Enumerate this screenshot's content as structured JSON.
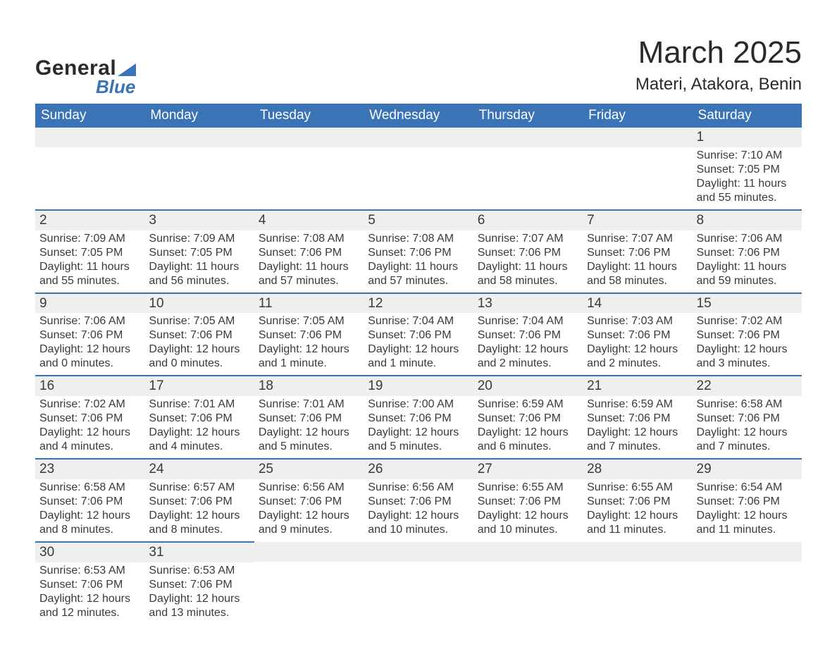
{
  "logo": {
    "line1": "General",
    "line2": "Blue",
    "triangle_color": "#3a74b7"
  },
  "title": "March 2025",
  "location": "Materi, Atakora, Benin",
  "colors": {
    "header_bg": "#3a74b7",
    "header_text": "#ffffff",
    "row_border": "#3a74b7",
    "daynum_bg": "#efefef",
    "text": "#3a3a3a",
    "background": "#ffffff"
  },
  "day_labels": [
    "Sunday",
    "Monday",
    "Tuesday",
    "Wednesday",
    "Thursday",
    "Friday",
    "Saturday"
  ],
  "weeks": [
    [
      null,
      null,
      null,
      null,
      null,
      null,
      {
        "n": "1",
        "sunrise": "Sunrise: 7:10 AM",
        "sunset": "Sunset: 7:05 PM",
        "day1": "Daylight: 11 hours",
        "day2": "and 55 minutes."
      }
    ],
    [
      {
        "n": "2",
        "sunrise": "Sunrise: 7:09 AM",
        "sunset": "Sunset: 7:05 PM",
        "day1": "Daylight: 11 hours",
        "day2": "and 55 minutes."
      },
      {
        "n": "3",
        "sunrise": "Sunrise: 7:09 AM",
        "sunset": "Sunset: 7:05 PM",
        "day1": "Daylight: 11 hours",
        "day2": "and 56 minutes."
      },
      {
        "n": "4",
        "sunrise": "Sunrise: 7:08 AM",
        "sunset": "Sunset: 7:06 PM",
        "day1": "Daylight: 11 hours",
        "day2": "and 57 minutes."
      },
      {
        "n": "5",
        "sunrise": "Sunrise: 7:08 AM",
        "sunset": "Sunset: 7:06 PM",
        "day1": "Daylight: 11 hours",
        "day2": "and 57 minutes."
      },
      {
        "n": "6",
        "sunrise": "Sunrise: 7:07 AM",
        "sunset": "Sunset: 7:06 PM",
        "day1": "Daylight: 11 hours",
        "day2": "and 58 minutes."
      },
      {
        "n": "7",
        "sunrise": "Sunrise: 7:07 AM",
        "sunset": "Sunset: 7:06 PM",
        "day1": "Daylight: 11 hours",
        "day2": "and 58 minutes."
      },
      {
        "n": "8",
        "sunrise": "Sunrise: 7:06 AM",
        "sunset": "Sunset: 7:06 PM",
        "day1": "Daylight: 11 hours",
        "day2": "and 59 minutes."
      }
    ],
    [
      {
        "n": "9",
        "sunrise": "Sunrise: 7:06 AM",
        "sunset": "Sunset: 7:06 PM",
        "day1": "Daylight: 12 hours",
        "day2": "and 0 minutes."
      },
      {
        "n": "10",
        "sunrise": "Sunrise: 7:05 AM",
        "sunset": "Sunset: 7:06 PM",
        "day1": "Daylight: 12 hours",
        "day2": "and 0 minutes."
      },
      {
        "n": "11",
        "sunrise": "Sunrise: 7:05 AM",
        "sunset": "Sunset: 7:06 PM",
        "day1": "Daylight: 12 hours",
        "day2": "and 1 minute."
      },
      {
        "n": "12",
        "sunrise": "Sunrise: 7:04 AM",
        "sunset": "Sunset: 7:06 PM",
        "day1": "Daylight: 12 hours",
        "day2": "and 1 minute."
      },
      {
        "n": "13",
        "sunrise": "Sunrise: 7:04 AM",
        "sunset": "Sunset: 7:06 PM",
        "day1": "Daylight: 12 hours",
        "day2": "and 2 minutes."
      },
      {
        "n": "14",
        "sunrise": "Sunrise: 7:03 AM",
        "sunset": "Sunset: 7:06 PM",
        "day1": "Daylight: 12 hours",
        "day2": "and 2 minutes."
      },
      {
        "n": "15",
        "sunrise": "Sunrise: 7:02 AM",
        "sunset": "Sunset: 7:06 PM",
        "day1": "Daylight: 12 hours",
        "day2": "and 3 minutes."
      }
    ],
    [
      {
        "n": "16",
        "sunrise": "Sunrise: 7:02 AM",
        "sunset": "Sunset: 7:06 PM",
        "day1": "Daylight: 12 hours",
        "day2": "and 4 minutes."
      },
      {
        "n": "17",
        "sunrise": "Sunrise: 7:01 AM",
        "sunset": "Sunset: 7:06 PM",
        "day1": "Daylight: 12 hours",
        "day2": "and 4 minutes."
      },
      {
        "n": "18",
        "sunrise": "Sunrise: 7:01 AM",
        "sunset": "Sunset: 7:06 PM",
        "day1": "Daylight: 12 hours",
        "day2": "and 5 minutes."
      },
      {
        "n": "19",
        "sunrise": "Sunrise: 7:00 AM",
        "sunset": "Sunset: 7:06 PM",
        "day1": "Daylight: 12 hours",
        "day2": "and 5 minutes."
      },
      {
        "n": "20",
        "sunrise": "Sunrise: 6:59 AM",
        "sunset": "Sunset: 7:06 PM",
        "day1": "Daylight: 12 hours",
        "day2": "and 6 minutes."
      },
      {
        "n": "21",
        "sunrise": "Sunrise: 6:59 AM",
        "sunset": "Sunset: 7:06 PM",
        "day1": "Daylight: 12 hours",
        "day2": "and 7 minutes."
      },
      {
        "n": "22",
        "sunrise": "Sunrise: 6:58 AM",
        "sunset": "Sunset: 7:06 PM",
        "day1": "Daylight: 12 hours",
        "day2": "and 7 minutes."
      }
    ],
    [
      {
        "n": "23",
        "sunrise": "Sunrise: 6:58 AM",
        "sunset": "Sunset: 7:06 PM",
        "day1": "Daylight: 12 hours",
        "day2": "and 8 minutes."
      },
      {
        "n": "24",
        "sunrise": "Sunrise: 6:57 AM",
        "sunset": "Sunset: 7:06 PM",
        "day1": "Daylight: 12 hours",
        "day2": "and 8 minutes."
      },
      {
        "n": "25",
        "sunrise": "Sunrise: 6:56 AM",
        "sunset": "Sunset: 7:06 PM",
        "day1": "Daylight: 12 hours",
        "day2": "and 9 minutes."
      },
      {
        "n": "26",
        "sunrise": "Sunrise: 6:56 AM",
        "sunset": "Sunset: 7:06 PM",
        "day1": "Daylight: 12 hours",
        "day2": "and 10 minutes."
      },
      {
        "n": "27",
        "sunrise": "Sunrise: 6:55 AM",
        "sunset": "Sunset: 7:06 PM",
        "day1": "Daylight: 12 hours",
        "day2": "and 10 minutes."
      },
      {
        "n": "28",
        "sunrise": "Sunrise: 6:55 AM",
        "sunset": "Sunset: 7:06 PM",
        "day1": "Daylight: 12 hours",
        "day2": "and 11 minutes."
      },
      {
        "n": "29",
        "sunrise": "Sunrise: 6:54 AM",
        "sunset": "Sunset: 7:06 PM",
        "day1": "Daylight: 12 hours",
        "day2": "and 11 minutes."
      }
    ],
    [
      {
        "n": "30",
        "sunrise": "Sunrise: 6:53 AM",
        "sunset": "Sunset: 7:06 PM",
        "day1": "Daylight: 12 hours",
        "day2": "and 12 minutes."
      },
      {
        "n": "31",
        "sunrise": "Sunrise: 6:53 AM",
        "sunset": "Sunset: 7:06 PM",
        "day1": "Daylight: 12 hours",
        "day2": "and 13 minutes."
      },
      null,
      null,
      null,
      null,
      null
    ]
  ]
}
